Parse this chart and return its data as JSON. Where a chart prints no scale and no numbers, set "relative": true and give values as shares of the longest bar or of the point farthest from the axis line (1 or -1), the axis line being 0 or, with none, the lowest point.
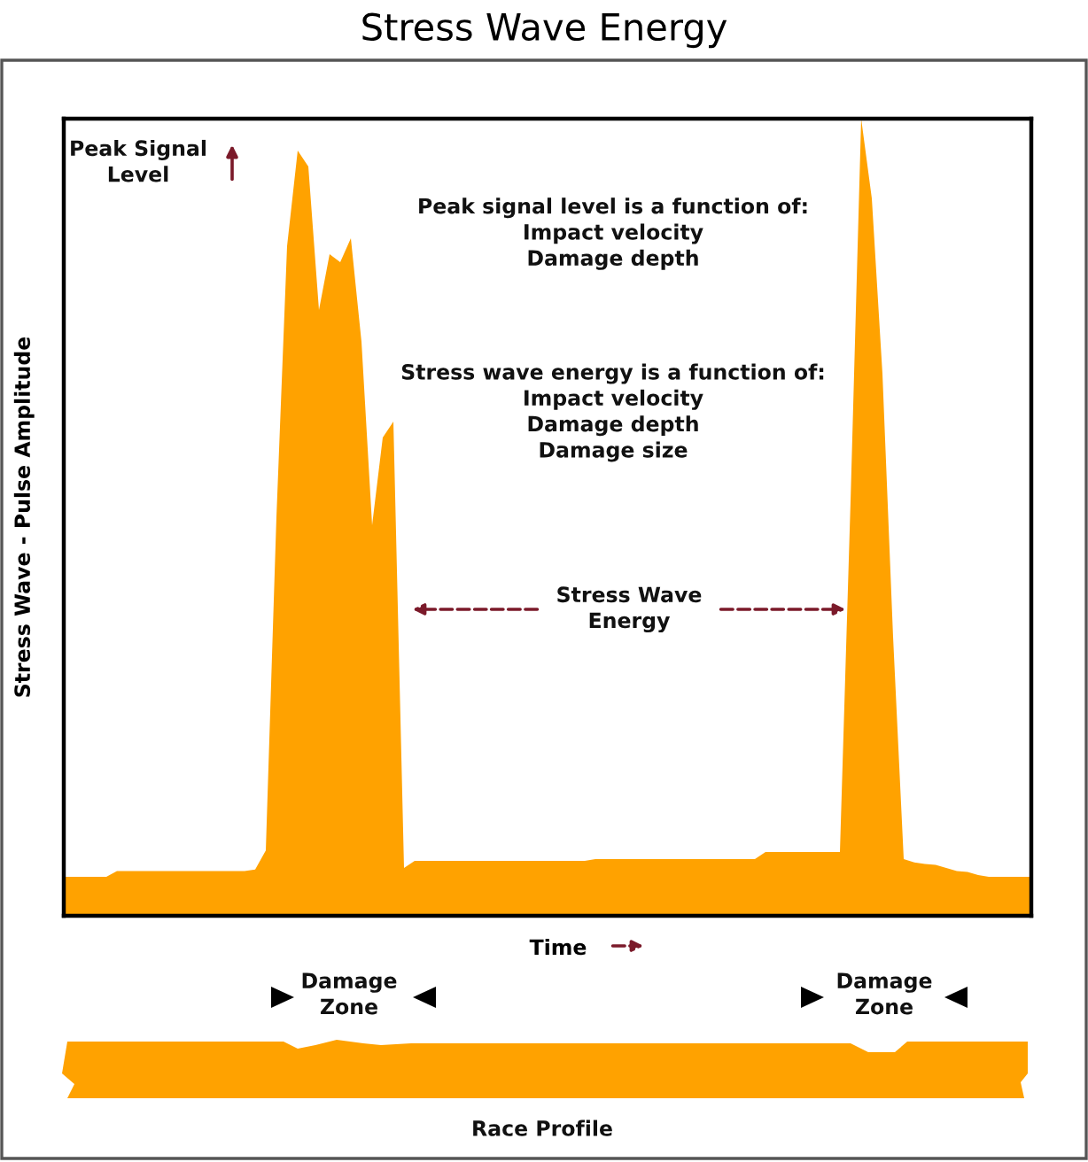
{
  "chart_data": {
    "type": "area",
    "title": "Stress Wave Energy",
    "xlabel": "Time",
    "ylabel": "Stress Wave - Pulse Amplitude",
    "relative": true,
    "grid": false,
    "legend": false,
    "categories": [
      null,
      null,
      null,
      null,
      null,
      null,
      null,
      null,
      null,
      null,
      null,
      null,
      null,
      null,
      null,
      null,
      null,
      null,
      null,
      null,
      null,
      null,
      null,
      null,
      null,
      null,
      null,
      null,
      null,
      null,
      null,
      null,
      null,
      null,
      null,
      null,
      null,
      null,
      null,
      null,
      null,
      null,
      null,
      null,
      null,
      null,
      null,
      null,
      null,
      null,
      null,
      null,
      null,
      null,
      null,
      null,
      null,
      null,
      null,
      null,
      null,
      null,
      null,
      null,
      null,
      null,
      null,
      null,
      null,
      null,
      null,
      null,
      null,
      null,
      null,
      null,
      null,
      null,
      null,
      null,
      null,
      null,
      null,
      null,
      null,
      null,
      null,
      null,
      null,
      null,
      null,
      null
    ],
    "series": [
      {
        "color": "#ffa200",
        "values": [
          0.049,
          0.049,
          0.049,
          0.049,
          0.049,
          0.056,
          0.056,
          0.056,
          0.056,
          0.056,
          0.056,
          0.056,
          0.056,
          0.056,
          0.056,
          0.056,
          0.056,
          0.056,
          0.058,
          0.082,
          0.5,
          0.84,
          0.96,
          0.94,
          0.76,
          0.83,
          0.82,
          0.85,
          0.72,
          0.49,
          0.6,
          0.62,
          0.06,
          0.069,
          0.069,
          0.069,
          0.069,
          0.069,
          0.069,
          0.069,
          0.069,
          0.069,
          0.069,
          0.069,
          0.069,
          0.069,
          0.069,
          0.069,
          0.069,
          0.069,
          0.071,
          0.071,
          0.071,
          0.071,
          0.071,
          0.071,
          0.071,
          0.071,
          0.071,
          0.071,
          0.071,
          0.071,
          0.071,
          0.071,
          0.071,
          0.071,
          0.08,
          0.08,
          0.08,
          0.08,
          0.08,
          0.08,
          0.08,
          0.08,
          0.52,
          1.0,
          0.9,
          0.68,
          0.35,
          0.071,
          0.067,
          0.065,
          0.064,
          0.06,
          0.056,
          0.055,
          0.051,
          0.049,
          0.049,
          0.049,
          0.049,
          0.049
        ]
      }
    ],
    "annotations": [
      "Peak Signal\nLevel",
      "Peak signal level is a function of:\nImpact velocity\nDamage depth",
      "Stress wave energy is a function of:\nImpact velocity\nDamage depth\nDamage size",
      "Stress Wave\nEnergy",
      "Damage\nZone",
      "Damage\nZone",
      "Race Profile"
    ]
  }
}
